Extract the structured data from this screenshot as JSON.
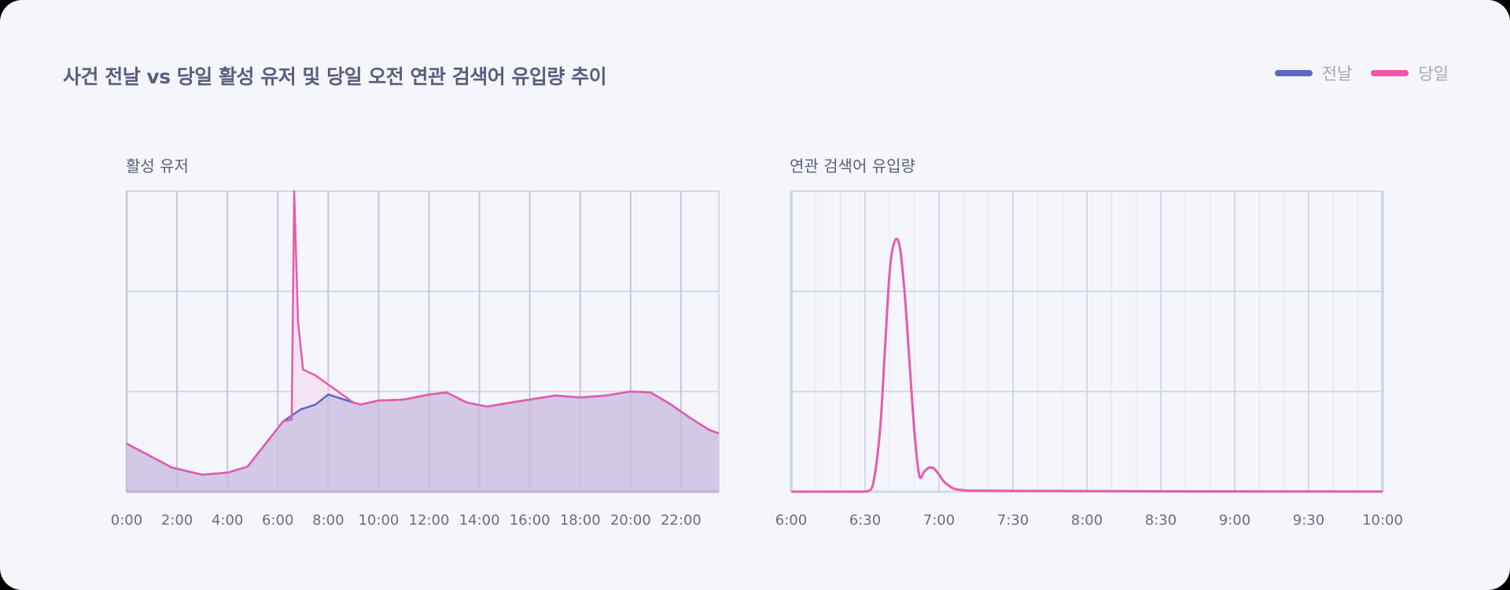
{
  "header": {
    "title": "사건 전날 vs 당일 활성 유저 및 당일 오전 연관 검색어 유입량 추이"
  },
  "legend": [
    {
      "label": "전날",
      "color": "#5b6abf"
    },
    {
      "label": "당일",
      "color": "#e85aad"
    }
  ],
  "colors": {
    "background": "#f5f6fb",
    "grid_major": "#d3d8e8",
    "grid_minor": "#e6e9f3",
    "prev_day_fill": "#d3c8e6",
    "today_fill": "#f4e2f1",
    "prev_day_line": "#5b6abf",
    "today_line": "#e85aad",
    "title_text": "#5c5c7e",
    "tick_text": "#6b6b85"
  },
  "charts": {
    "left": {
      "title": "활성 유저"
    },
    "right": {
      "title": "연관 검색어 유입량"
    }
  },
  "chart_data": [
    {
      "type": "area",
      "title": "활성 유저",
      "xlabel": "",
      "ylabel": "",
      "x_ticks": [
        "0:00",
        "2:00",
        "4:00",
        "6:00",
        "8:00",
        "10:00",
        "12:00",
        "14:00",
        "16:00",
        "18:00",
        "20:00",
        "22:00"
      ],
      "xlim": [
        0,
        23.5
      ],
      "ylim": [
        0,
        3
      ],
      "grid": true,
      "y_tick_labels_visible": false,
      "series": [
        {
          "name": "전날",
          "x": [
            0,
            1.8,
            3.0,
            4.0,
            4.8,
            6.2,
            6.9,
            7.5,
            8.0,
            9.0,
            9.3,
            10.0,
            11.0,
            12.0,
            12.7,
            13.5,
            14.3,
            15.5,
            17.0,
            18.0,
            19.0,
            20.0,
            20.8,
            21.6,
            22.4,
            23.1,
            23.5
          ],
          "values": [
            0.48,
            0.24,
            0.17,
            0.19,
            0.25,
            0.7,
            0.82,
            0.87,
            0.97,
            0.89,
            0.87,
            0.91,
            0.92,
            0.97,
            0.99,
            0.89,
            0.85,
            0.9,
            0.96,
            0.94,
            0.96,
            1.0,
            0.99,
            0.87,
            0.73,
            0.62,
            0.58
          ]
        },
        {
          "name": "당일",
          "x": [
            0,
            1.8,
            3.0,
            4.0,
            4.8,
            6.2,
            6.55,
            6.65,
            6.8,
            7.0,
            7.5,
            8.0,
            9.0,
            9.3,
            10.0,
            11.0,
            12.0,
            12.7,
            13.5,
            14.3,
            15.5,
            17.0,
            18.0,
            19.0,
            20.0,
            20.8,
            21.6,
            22.4,
            23.1,
            23.5
          ],
          "values": [
            0.48,
            0.24,
            0.17,
            0.19,
            0.25,
            0.7,
            0.72,
            3.0,
            1.7,
            1.22,
            1.16,
            1.07,
            0.89,
            0.87,
            0.91,
            0.92,
            0.97,
            0.99,
            0.89,
            0.85,
            0.9,
            0.96,
            0.94,
            0.96,
            1.0,
            0.99,
            0.87,
            0.73,
            0.62,
            0.58
          ]
        }
      ]
    },
    {
      "type": "line",
      "title": "연관 검색어 유입량",
      "xlabel": "",
      "ylabel": "",
      "x_ticks": [
        "6:00",
        "6:30",
        "7:00",
        "7:30",
        "8:00",
        "8:30",
        "9:00",
        "9:30",
        "10:00"
      ],
      "xlim": [
        "6:00",
        "10:00"
      ],
      "ylim": [
        0,
        3
      ],
      "grid": true,
      "y_tick_labels_visible": false,
      "series": [
        {
          "name": "당일",
          "x_minutes_from_6": [
            0,
            5,
            10,
            15,
            20,
            25,
            30,
            33,
            36,
            38,
            40,
            42,
            44,
            46,
            48,
            50,
            52,
            54,
            56,
            58,
            60,
            62,
            64,
            66,
            68,
            70,
            72,
            75,
            80,
            90,
            120,
            150,
            180,
            210,
            240
          ],
          "values": [
            0,
            0,
            0,
            0,
            0,
            0,
            0,
            0.05,
            0.6,
            1.4,
            2.2,
            2.5,
            2.45,
            2.0,
            1.3,
            0.6,
            0.16,
            0.2,
            0.24,
            0.23,
            0.17,
            0.1,
            0.06,
            0.03,
            0.02,
            0.015,
            0.01,
            0.01,
            0.01,
            0.008,
            0.006,
            0.004,
            0.003,
            0.002,
            0.001
          ]
        }
      ]
    }
  ]
}
